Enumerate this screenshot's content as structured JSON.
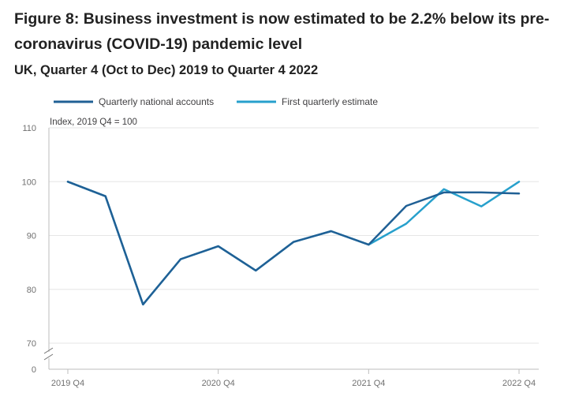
{
  "title": "Figure 8: Business investment is now estimated to be 2.2% below its pre-coronavirus (COVID-19) pandemic level",
  "subtitle": "UK, Quarter 4 (Oct to Dec) 2019 to Quarter 4 2022",
  "colors": {
    "series1": "#206095",
    "series2": "#27a0cc",
    "grid": "#e6e6e6",
    "axis": "#bebebe"
  },
  "chart_data": {
    "type": "line",
    "ylabel": "Index, 2019 Q4 = 100",
    "xlabel": "",
    "ylim": [
      70,
      110
    ],
    "yticks": [
      70,
      80,
      90,
      100,
      110
    ],
    "y_zero_label": "0",
    "axis_break": true,
    "grid": true,
    "legend_position": "top",
    "x": [
      "2019 Q4",
      "2020 Q1",
      "2020 Q2",
      "2020 Q3",
      "2020 Q4",
      "2021 Q1",
      "2021 Q2",
      "2021 Q3",
      "2021 Q4",
      "2022 Q1",
      "2022 Q2",
      "2022 Q3",
      "2022 Q4"
    ],
    "x_tick_labels": [
      "2019 Q4",
      "2020 Q4",
      "2021 Q4",
      "2022 Q4"
    ],
    "series": [
      {
        "name": "Quarterly national accounts",
        "color": "#206095",
        "values": [
          100.0,
          97.3,
          77.2,
          85.6,
          88.0,
          83.5,
          88.8,
          90.8,
          88.3,
          95.5,
          98.0,
          98.0,
          97.8
        ]
      },
      {
        "name": "First quarterly estimate",
        "color": "#27a0cc",
        "values": [
          100.0,
          97.3,
          77.2,
          85.6,
          88.0,
          83.5,
          88.8,
          90.8,
          88.3,
          92.2,
          98.6,
          95.4,
          100.0
        ]
      }
    ]
  }
}
